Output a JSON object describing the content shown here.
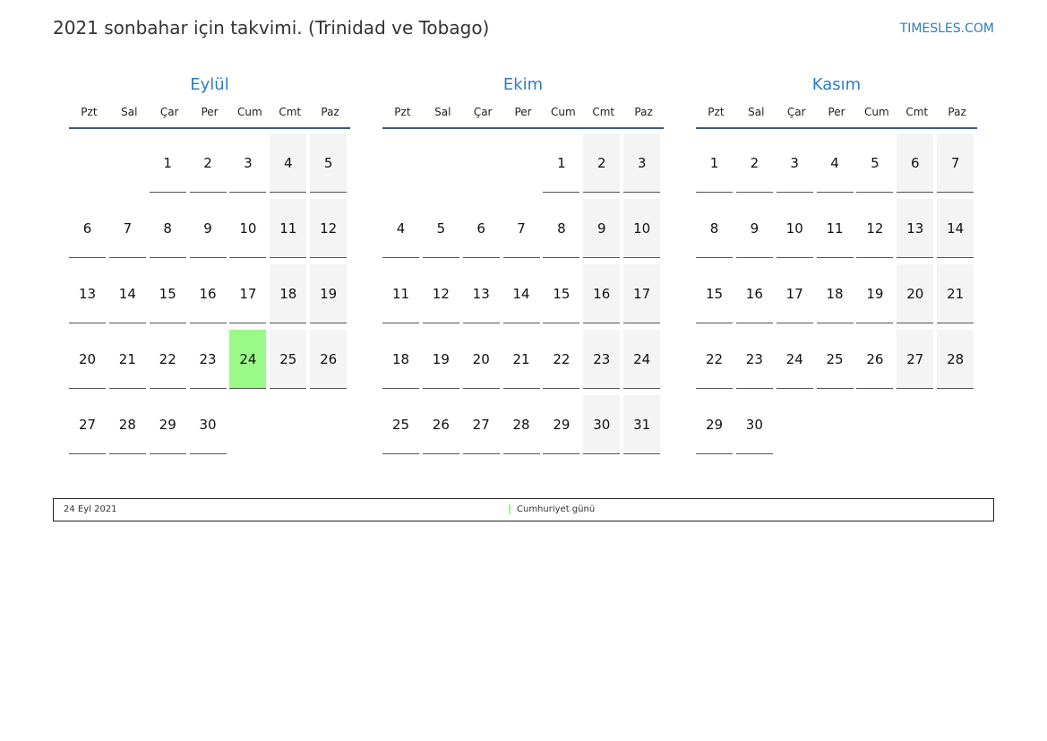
{
  "header": {
    "title": "2021 sonbahar için takvimi. (Trinidad ve Tobago)",
    "brand": "TIMESLES.COM"
  },
  "weekdays": [
    "Pzt",
    "Sal",
    "Çar",
    "Per",
    "Cum",
    "Cmt",
    "Paz"
  ],
  "colors": {
    "accent": "#2e7cc0",
    "holiday": "#99fa88",
    "weekend": "#f4f4f4"
  },
  "months": [
    {
      "name": "Eylül",
      "weeks": [
        [
          null,
          null,
          1,
          2,
          3,
          4,
          5
        ],
        [
          6,
          7,
          8,
          9,
          10,
          11,
          12
        ],
        [
          13,
          14,
          15,
          16,
          17,
          18,
          19
        ],
        [
          20,
          21,
          22,
          23,
          24,
          25,
          26
        ],
        [
          27,
          28,
          29,
          30,
          null,
          null,
          null
        ]
      ],
      "holidays": [
        24
      ]
    },
    {
      "name": "Ekim",
      "weeks": [
        [
          null,
          null,
          null,
          null,
          1,
          2,
          3
        ],
        [
          4,
          5,
          6,
          7,
          8,
          9,
          10
        ],
        [
          11,
          12,
          13,
          14,
          15,
          16,
          17
        ],
        [
          18,
          19,
          20,
          21,
          22,
          23,
          24
        ],
        [
          25,
          26,
          27,
          28,
          29,
          30,
          31
        ]
      ],
      "holidays": []
    },
    {
      "name": "Kasım",
      "weeks": [
        [
          1,
          2,
          3,
          4,
          5,
          6,
          7
        ],
        [
          8,
          9,
          10,
          11,
          12,
          13,
          14
        ],
        [
          15,
          16,
          17,
          18,
          19,
          20,
          21
        ],
        [
          22,
          23,
          24,
          25,
          26,
          27,
          28
        ],
        [
          29,
          30,
          null,
          null,
          null,
          null,
          null
        ]
      ],
      "holidays": []
    }
  ],
  "legend": [
    {
      "date": "24 Eyl 2021",
      "name": "Cumhuriyet günü"
    }
  ]
}
